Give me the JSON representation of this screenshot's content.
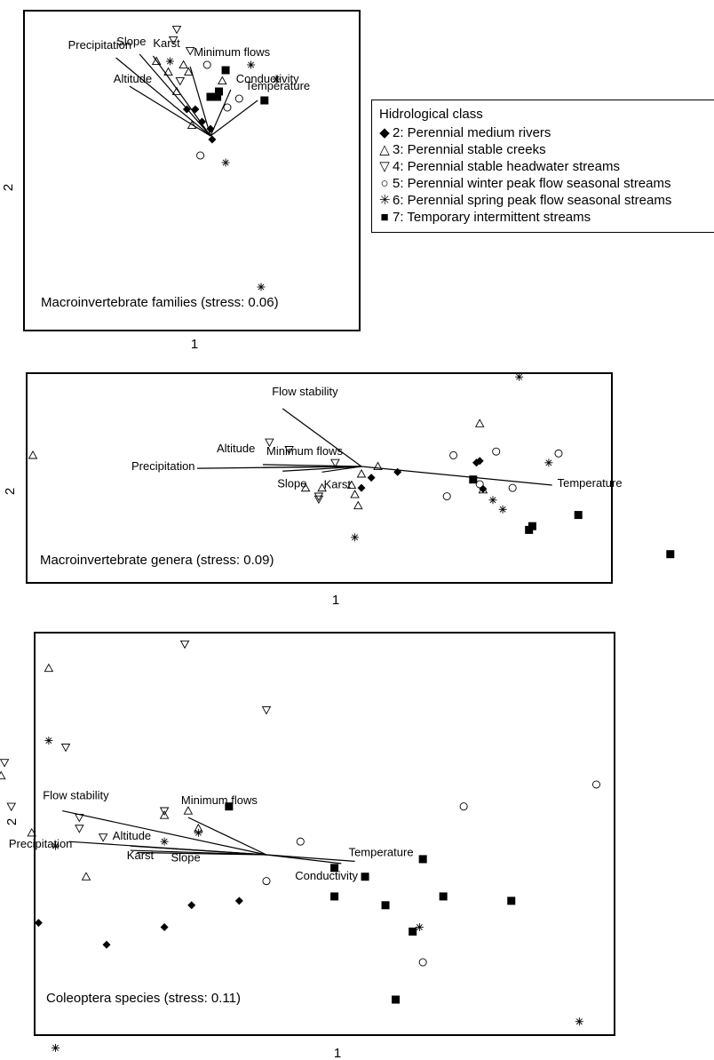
{
  "figure": {
    "legend": {
      "title": "Hidrological class",
      "items": [
        {
          "symbol": "diamond",
          "label": "2: Perennial medium rivers"
        },
        {
          "symbol": "triangle-up",
          "label": "3: Perennial stable creeks"
        },
        {
          "symbol": "triangle-down",
          "label": "4: Perennial stable headwater streams"
        },
        {
          "symbol": "circle",
          "label": "5: Perennial winter peak flow seasonal streams"
        },
        {
          "symbol": "asterisk",
          "label": "6: Perennial spring peak flow seasonal streams"
        },
        {
          "symbol": "square",
          "label": "7: Temporary intermittent streams"
        }
      ]
    }
  },
  "chart_data": [
    {
      "type": "scatter",
      "title": "Macroinvertebrate families (stress: 0.06)",
      "xlabel": "1",
      "ylabel": "2",
      "xlim": [
        -1,
        1
      ],
      "ylim": [
        -1,
        1
      ],
      "points": [
        {
          "x": -0.55,
          "y": 0.94,
          "class": "3"
        },
        {
          "x": -0.2,
          "y": 0.6,
          "class": "4"
        },
        {
          "x": -0.22,
          "y": 0.54,
          "class": "4"
        },
        {
          "x": -0.12,
          "y": 0.48,
          "class": "4"
        },
        {
          "x": -0.32,
          "y": 0.42,
          "class": "3"
        },
        {
          "x": -0.24,
          "y": 0.42,
          "class": "6"
        },
        {
          "x": -0.16,
          "y": 0.4,
          "class": "3"
        },
        {
          "x": -0.02,
          "y": 0.4,
          "class": "5"
        },
        {
          "x": -0.25,
          "y": 0.36,
          "class": "3"
        },
        {
          "x": -0.13,
          "y": 0.36,
          "class": "3"
        },
        {
          "x": -0.18,
          "y": 0.31,
          "class": "4"
        },
        {
          "x": 0.07,
          "y": 0.31,
          "class": "3"
        },
        {
          "x": 0.09,
          "y": 0.37,
          "class": "7"
        },
        {
          "x": 0.24,
          "y": 0.4,
          "class": "6"
        },
        {
          "x": 0.39,
          "y": 0.32,
          "class": "6"
        },
        {
          "x": -0.2,
          "y": 0.25,
          "class": "3"
        },
        {
          "x": 0.05,
          "y": 0.25,
          "class": "7"
        },
        {
          "x": 0.0,
          "y": 0.22,
          "class": "7"
        },
        {
          "x": 0.04,
          "y": 0.22,
          "class": "7"
        },
        {
          "x": 0.17,
          "y": 0.21,
          "class": "5"
        },
        {
          "x": 0.32,
          "y": 0.2,
          "class": "7"
        },
        {
          "x": 0.1,
          "y": 0.16,
          "class": "5"
        },
        {
          "x": -0.14,
          "y": 0.15,
          "class": "2"
        },
        {
          "x": -0.09,
          "y": 0.15,
          "class": "2"
        },
        {
          "x": -0.05,
          "y": 0.08,
          "class": "2"
        },
        {
          "x": -0.11,
          "y": 0.06,
          "class": "3"
        },
        {
          "x": 0.0,
          "y": 0.04,
          "class": "2"
        },
        {
          "x": 0.01,
          "y": -0.02,
          "class": "2"
        },
        {
          "x": -0.06,
          "y": -0.11,
          "class": "5"
        },
        {
          "x": 0.09,
          "y": -0.15,
          "class": "6"
        },
        {
          "x": 0.3,
          "y": -0.85,
          "class": "6"
        }
      ],
      "vectors": [
        {
          "label": "Precipitation",
          "x": -0.56,
          "y": 0.44
        },
        {
          "label": "Slope",
          "x": -0.42,
          "y": 0.46
        },
        {
          "label": "Karst",
          "x": -0.34,
          "y": 0.45
        },
        {
          "label": "Minimum flows",
          "x": -0.12,
          "y": 0.39
        },
        {
          "label": "Altitude",
          "x": -0.48,
          "y": 0.28
        },
        {
          "label": "Conductivity",
          "x": 0.12,
          "y": 0.26
        },
        {
          "label": "Temperature",
          "x": 0.28,
          "y": 0.2
        }
      ]
    },
    {
      "type": "scatter",
      "title": "Macroinvertebrate genera (stress: 0.09)",
      "xlabel": "1",
      "ylabel": "2",
      "xlim": [
        -1,
        1
      ],
      "ylim": [
        -1,
        1
      ],
      "points": [
        {
          "x": 0.48,
          "y": 0.96,
          "class": "6"
        },
        {
          "x": 0.36,
          "y": 0.46,
          "class": "3"
        },
        {
          "x": -0.28,
          "y": 0.26,
          "class": "4"
        },
        {
          "x": -0.22,
          "y": 0.18,
          "class": "4"
        },
        {
          "x": 0.41,
          "y": 0.16,
          "class": "5"
        },
        {
          "x": 0.6,
          "y": 0.14,
          "class": "5"
        },
        {
          "x": -1.0,
          "y": 0.12,
          "class": "3"
        },
        {
          "x": 0.28,
          "y": 0.12,
          "class": "5"
        },
        {
          "x": 0.36,
          "y": 0.06,
          "class": "2"
        },
        {
          "x": 0.35,
          "y": 0.04,
          "class": "2"
        },
        {
          "x": 0.57,
          "y": 0.04,
          "class": "6"
        },
        {
          "x": -0.08,
          "y": 0.04,
          "class": "4"
        },
        {
          "x": 0.05,
          "y": 0.0,
          "class": "3"
        },
        {
          "x": 0.0,
          "y": -0.08,
          "class": "3"
        },
        {
          "x": 0.11,
          "y": -0.06,
          "class": "2"
        },
        {
          "x": 0.03,
          "y": -0.12,
          "class": "2"
        },
        {
          "x": 0.34,
          "y": -0.14,
          "class": "7"
        },
        {
          "x": 0.36,
          "y": -0.19,
          "class": "5"
        },
        {
          "x": -0.03,
          "y": -0.2,
          "class": "3"
        },
        {
          "x": -0.17,
          "y": -0.23,
          "class": "3"
        },
        {
          "x": -0.12,
          "y": -0.23,
          "class": "3"
        },
        {
          "x": 0.0,
          "y": -0.23,
          "class": "2"
        },
        {
          "x": 0.46,
          "y": -0.23,
          "class": "5"
        },
        {
          "x": 0.37,
          "y": -0.24,
          "class": "2"
        },
        {
          "x": 0.37,
          "y": -0.25,
          "class": "3"
        },
        {
          "x": -0.02,
          "y": -0.3,
          "class": "3"
        },
        {
          "x": 0.26,
          "y": -0.32,
          "class": "5"
        },
        {
          "x": -0.13,
          "y": -0.32,
          "class": "4"
        },
        {
          "x": -0.13,
          "y": -0.35,
          "class": "4"
        },
        {
          "x": 0.4,
          "y": -0.36,
          "class": "6"
        },
        {
          "x": -0.01,
          "y": -0.42,
          "class": "3"
        },
        {
          "x": 0.43,
          "y": -0.46,
          "class": "6"
        },
        {
          "x": 0.66,
          "y": -0.52,
          "class": "7"
        },
        {
          "x": 0.52,
          "y": -0.64,
          "class": "7"
        },
        {
          "x": 0.51,
          "y": -0.68,
          "class": "7"
        },
        {
          "x": -0.02,
          "y": -0.76,
          "class": "6"
        },
        {
          "x": 0.94,
          "y": -0.94,
          "class": "7"
        }
      ],
      "vectors": [
        {
          "label": "Flow stability",
          "x": -0.24,
          "y": 0.62
        },
        {
          "label": "Altitude",
          "x": -0.3,
          "y": 0.02
        },
        {
          "label": "Minimum flows",
          "x": -0.3,
          "y": -0.01
        },
        {
          "label": "Precipitation",
          "x": -0.5,
          "y": -0.02
        },
        {
          "label": "Slope",
          "x": -0.24,
          "y": -0.05
        },
        {
          "label": "Karst",
          "x": -0.12,
          "y": -0.06
        },
        {
          "label": "Temperature",
          "x": 0.58,
          "y": -0.2
        }
      ]
    },
    {
      "type": "scatter",
      "title": "Coleoptera species (stress: 0.11)",
      "xlabel": "1",
      "ylabel": "2",
      "xlim": [
        -1,
        1
      ],
      "ylim": [
        -1,
        1
      ],
      "points": [
        {
          "x": -0.24,
          "y": 0.96,
          "class": "4"
        },
        {
          "x": -0.64,
          "y": 0.85,
          "class": "3"
        },
        {
          "x": 0.0,
          "y": 0.66,
          "class": "4"
        },
        {
          "x": -0.64,
          "y": 0.52,
          "class": "6"
        },
        {
          "x": -0.59,
          "y": 0.49,
          "class": "4"
        },
        {
          "x": -0.82,
          "y": 0.48,
          "class": "3"
        },
        {
          "x": -0.77,
          "y": 0.42,
          "class": "4"
        },
        {
          "x": -0.78,
          "y": 0.36,
          "class": "3"
        },
        {
          "x": -0.98,
          "y": 0.32,
          "class": "6"
        },
        {
          "x": 0.97,
          "y": 0.32,
          "class": "5"
        },
        {
          "x": -0.75,
          "y": 0.22,
          "class": "4"
        },
        {
          "x": 0.58,
          "y": 0.22,
          "class": "5"
        },
        {
          "x": -0.11,
          "y": 0.22,
          "class": "7"
        },
        {
          "x": -0.23,
          "y": 0.2,
          "class": "3"
        },
        {
          "x": -0.55,
          "y": 0.17,
          "class": "4"
        },
        {
          "x": -0.8,
          "y": 0.17,
          "class": "3"
        },
        {
          "x": -0.3,
          "y": 0.2,
          "class": "4"
        },
        {
          "x": -0.3,
          "y": 0.18,
          "class": "3"
        },
        {
          "x": -0.2,
          "y": 0.12,
          "class": "3"
        },
        {
          "x": -0.55,
          "y": 0.12,
          "class": "4"
        },
        {
          "x": -0.2,
          "y": 0.1,
          "class": "6"
        },
        {
          "x": -0.69,
          "y": 0.1,
          "class": "3"
        },
        {
          "x": -0.48,
          "y": 0.08,
          "class": "4"
        },
        {
          "x": -0.3,
          "y": 0.06,
          "class": "6"
        },
        {
          "x": 0.1,
          "y": 0.06,
          "class": "5"
        },
        {
          "x": -0.62,
          "y": 0.04,
          "class": "6"
        },
        {
          "x": -1.0,
          "y": 0.0,
          "class": "4"
        },
        {
          "x": 0.46,
          "y": -0.02,
          "class": "7"
        },
        {
          "x": 0.2,
          "y": -0.06,
          "class": "7"
        },
        {
          "x": 0.29,
          "y": -0.1,
          "class": "7"
        },
        {
          "x": -0.53,
          "y": -0.1,
          "class": "3"
        },
        {
          "x": 0.0,
          "y": -0.12,
          "class": "5"
        },
        {
          "x": 0.2,
          "y": -0.19,
          "class": "7"
        },
        {
          "x": 0.52,
          "y": -0.19,
          "class": "7"
        },
        {
          "x": 0.72,
          "y": -0.21,
          "class": "7"
        },
        {
          "x": -0.08,
          "y": -0.21,
          "class": "2"
        },
        {
          "x": 0.35,
          "y": -0.23,
          "class": "7"
        },
        {
          "x": -0.22,
          "y": -0.23,
          "class": "2"
        },
        {
          "x": -0.67,
          "y": -0.31,
          "class": "2"
        },
        {
          "x": -0.3,
          "y": -0.33,
          "class": "2"
        },
        {
          "x": 0.45,
          "y": -0.33,
          "class": "6"
        },
        {
          "x": 0.43,
          "y": -0.35,
          "class": "7"
        },
        {
          "x": -0.47,
          "y": -0.41,
          "class": "2"
        },
        {
          "x": 0.46,
          "y": -0.49,
          "class": "5"
        },
        {
          "x": 0.38,
          "y": -0.66,
          "class": "7"
        },
        {
          "x": 0.92,
          "y": -0.76,
          "class": "6"
        },
        {
          "x": -0.62,
          "y": -0.88,
          "class": "6"
        }
      ],
      "vectors": [
        {
          "label": "Flow stability",
          "x": -0.6,
          "y": 0.2
        },
        {
          "label": "Minimum flows",
          "x": -0.23,
          "y": 0.17
        },
        {
          "label": "Precipitation",
          "x": -0.58,
          "y": 0.06
        },
        {
          "label": "Altitude",
          "x": -0.4,
          "y": 0.04
        },
        {
          "label": "Karst",
          "x": -0.4,
          "y": 0.02
        },
        {
          "label": "Slope",
          "x": -0.38,
          "y": 0.01
        },
        {
          "label": "Conductivity",
          "x": 0.22,
          "y": -0.04
        },
        {
          "label": "Temperature",
          "x": 0.26,
          "y": -0.03
        }
      ]
    }
  ]
}
